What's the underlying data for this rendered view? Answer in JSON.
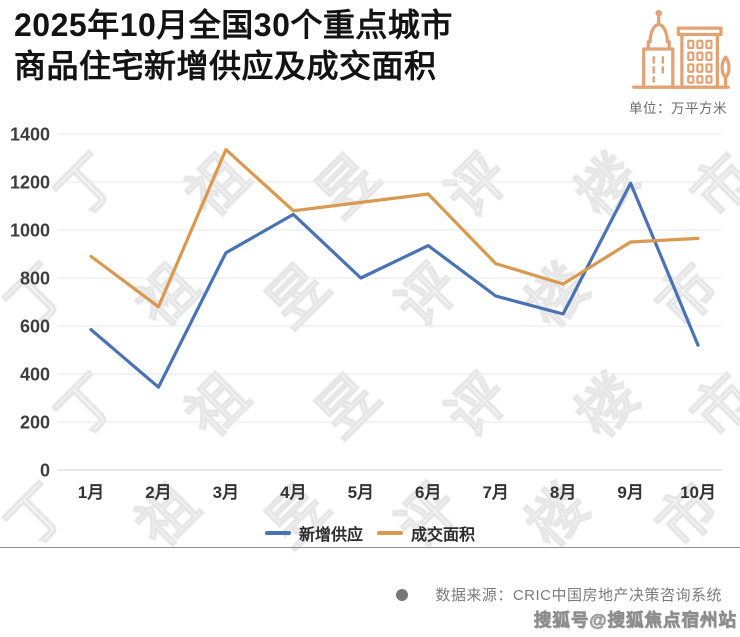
{
  "header": {
    "title_line1": "2025年10月全国30个重点城市",
    "title_line2": "商品住宅新增供应及成交面积",
    "unit_label": "单位：万平方米",
    "icon_color": "#E2A273"
  },
  "chart_data": {
    "type": "line",
    "title": "2025年10月全国30个重点城市商品住宅新增供应及成交面积",
    "unit": "万平方米",
    "categories": [
      "1月",
      "2月",
      "3月",
      "4月",
      "5月",
      "6月",
      "7月",
      "8月",
      "9月",
      "10月"
    ],
    "series": [
      {
        "name": "新增供应",
        "color": "#4A72B4",
        "values": [
          585,
          345,
          905,
          1065,
          800,
          935,
          725,
          650,
          1195,
          520
        ]
      },
      {
        "name": "成交面积",
        "color": "#D9994F",
        "values": [
          890,
          680,
          1335,
          1080,
          1115,
          1150,
          860,
          775,
          950,
          965
        ]
      }
    ],
    "ylim": [
      0,
      1400
    ],
    "yticks": [
      0,
      200,
      400,
      600,
      800,
      1000,
      1200,
      1400
    ],
    "grid": true,
    "legend_position": "bottom",
    "grid_color": "#ececec",
    "axis_label_color": "#3d3d3d",
    "category_label_color": "#333333"
  },
  "footer": {
    "source_text": "数据来源：CRIC中国房地产决策咨询系统",
    "sohu_watermark": "搜狐号@搜狐焦点宿州站"
  },
  "watermark": {
    "text": "丁祖昱评楼市"
  }
}
